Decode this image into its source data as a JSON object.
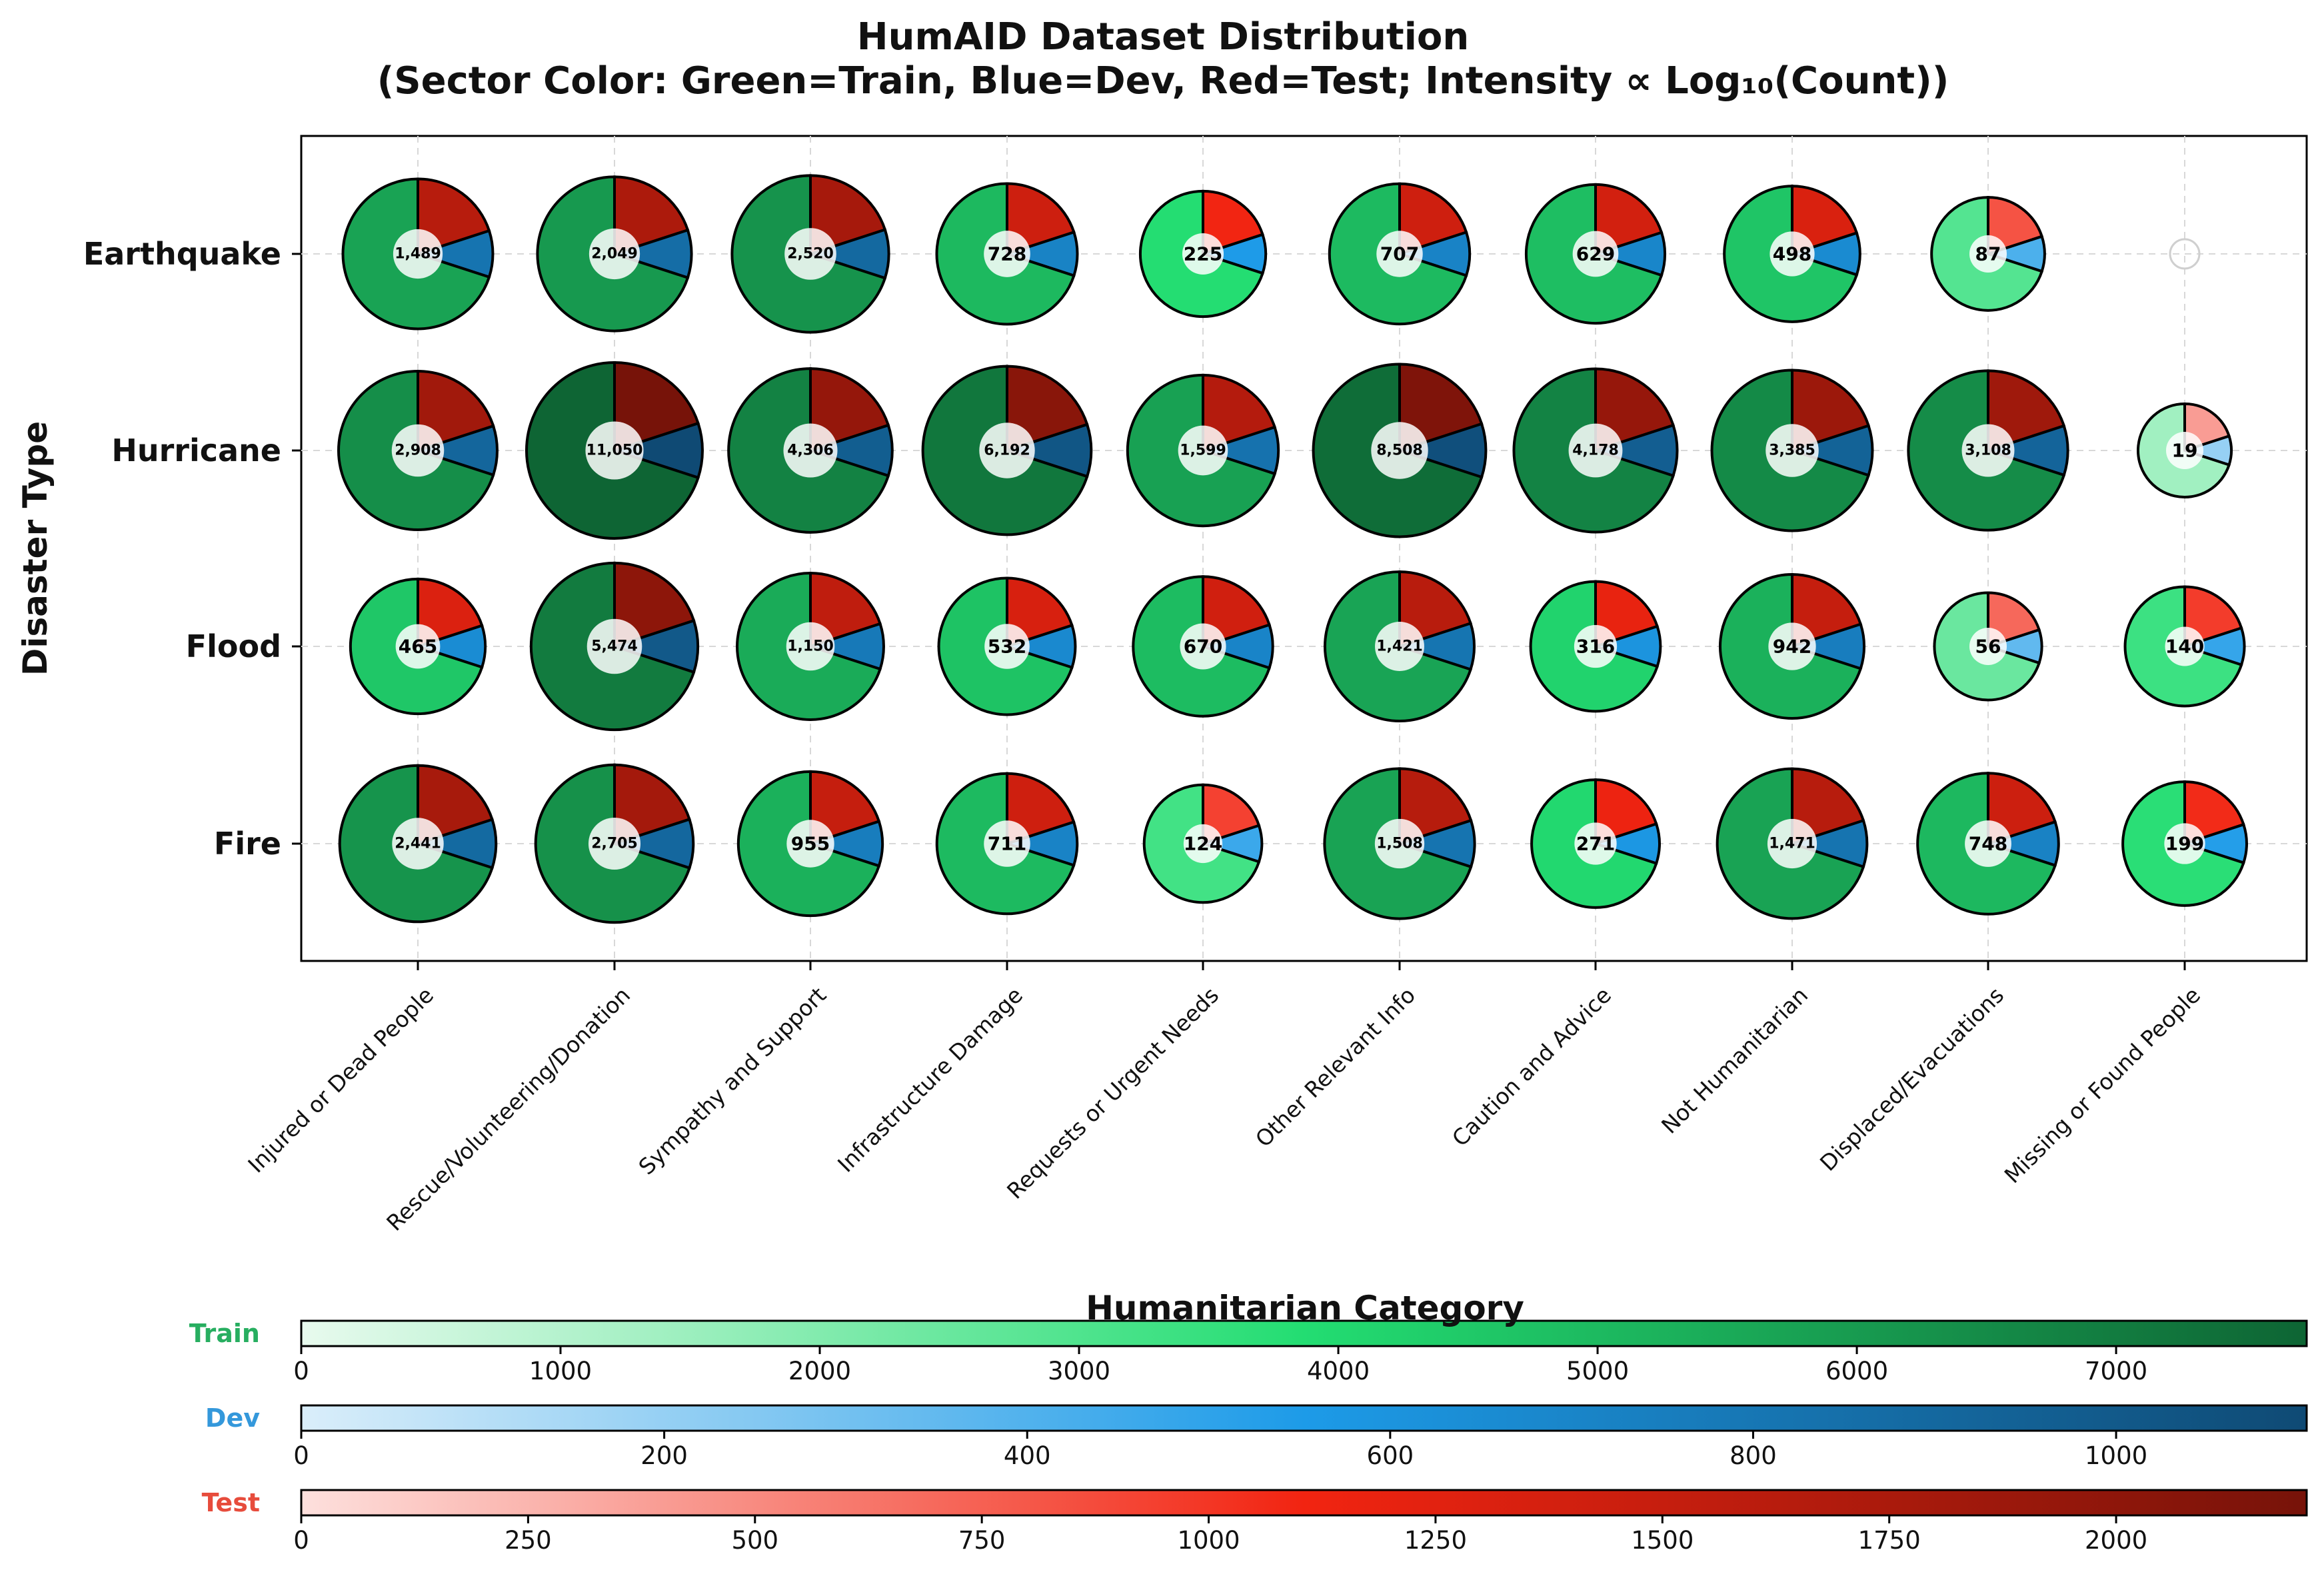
{
  "chart_data": {
    "type": "pie-grid",
    "title": "HumAID Dataset Distribution",
    "subtitle": "(Sector Color: Green=Train, Blue=Dev, Red=Test; Intensity ∝ Log₁₀(Count))",
    "xlabel": "Humanitarian Category",
    "ylabel": "Disaster Type",
    "rows": [
      "Earthquake",
      "Hurricane",
      "Flood",
      "Fire"
    ],
    "columns": [
      "Injured or Dead People",
      "Rescue/Volunteering/Donation",
      "Sympathy and Support",
      "Infrastructure Damage",
      "Requests or Urgent Needs",
      "Other Relevant Info",
      "Caution and Advice",
      "Not Humanitarian",
      "Displaced/Evacuations",
      "Missing or Found People"
    ],
    "counts": [
      [
        1489,
        2049,
        2520,
        728,
        225,
        707,
        629,
        498,
        87,
        0
      ],
      [
        2908,
        11050,
        4306,
        6192,
        1599,
        8508,
        4178,
        3385,
        3108,
        19
      ],
      [
        465,
        5474,
        1150,
        532,
        670,
        1421,
        316,
        942,
        56,
        140
      ],
      [
        2441,
        2705,
        955,
        711,
        124,
        1508,
        271,
        1471,
        748,
        199
      ]
    ],
    "count_labels": [
      [
        "1,489",
        "2,049",
        "2,520",
        "728",
        "225",
        "707",
        "629",
        "498",
        "87",
        ""
      ],
      [
        "2,908",
        "11,050",
        "4,306",
        "6,192",
        "1,599",
        "8,508",
        "4,178",
        "3,385",
        "3,108",
        "19"
      ],
      [
        "465",
        "5,474",
        "1,150",
        "532",
        "670",
        "1,421",
        "316",
        "942",
        "56",
        "140"
      ],
      [
        "2,441",
        "2,705",
        "955",
        "711",
        "124",
        "1,508",
        "271",
        "1,471",
        "748",
        "199"
      ]
    ],
    "split_fractions": {
      "train": 0.7,
      "dev": 0.1,
      "test": 0.2
    },
    "colorbars": [
      {
        "name": "Train",
        "label_color": "#27ae60",
        "range": [
          0,
          7735
        ],
        "ticks": [
          0,
          1000,
          2000,
          3000,
          4000,
          5000,
          6000,
          7000
        ],
        "tick_labels": [
          "0",
          "1000",
          "2000",
          "3000",
          "4000",
          "5000",
          "6000",
          "7000"
        ],
        "colors": [
          "#e8faee",
          "#23dd72",
          "#0e6534"
        ]
      },
      {
        "name": "Dev",
        "label_color": "#3498db",
        "range": [
          0,
          1105
        ],
        "ticks": [
          0,
          200,
          400,
          600,
          800,
          1000
        ],
        "tick_labels": [
          "0",
          "200",
          "400",
          "600",
          "800",
          "1000"
        ],
        "colors": [
          "#daeefa",
          "#1d9be8",
          "#0f4a74"
        ]
      },
      {
        "name": "Test",
        "label_color": "#e74c3c",
        "range": [
          0,
          2210
        ],
        "ticks": [
          0,
          250,
          500,
          750,
          1000,
          1250,
          1500,
          1750,
          2000
        ],
        "tick_labels": [
          "0",
          "250",
          "500",
          "750",
          "1000",
          "1250",
          "1500",
          "1750",
          "2000"
        ],
        "colors": [
          "#fde0dd",
          "#f22411",
          "#771309"
        ]
      }
    ]
  }
}
